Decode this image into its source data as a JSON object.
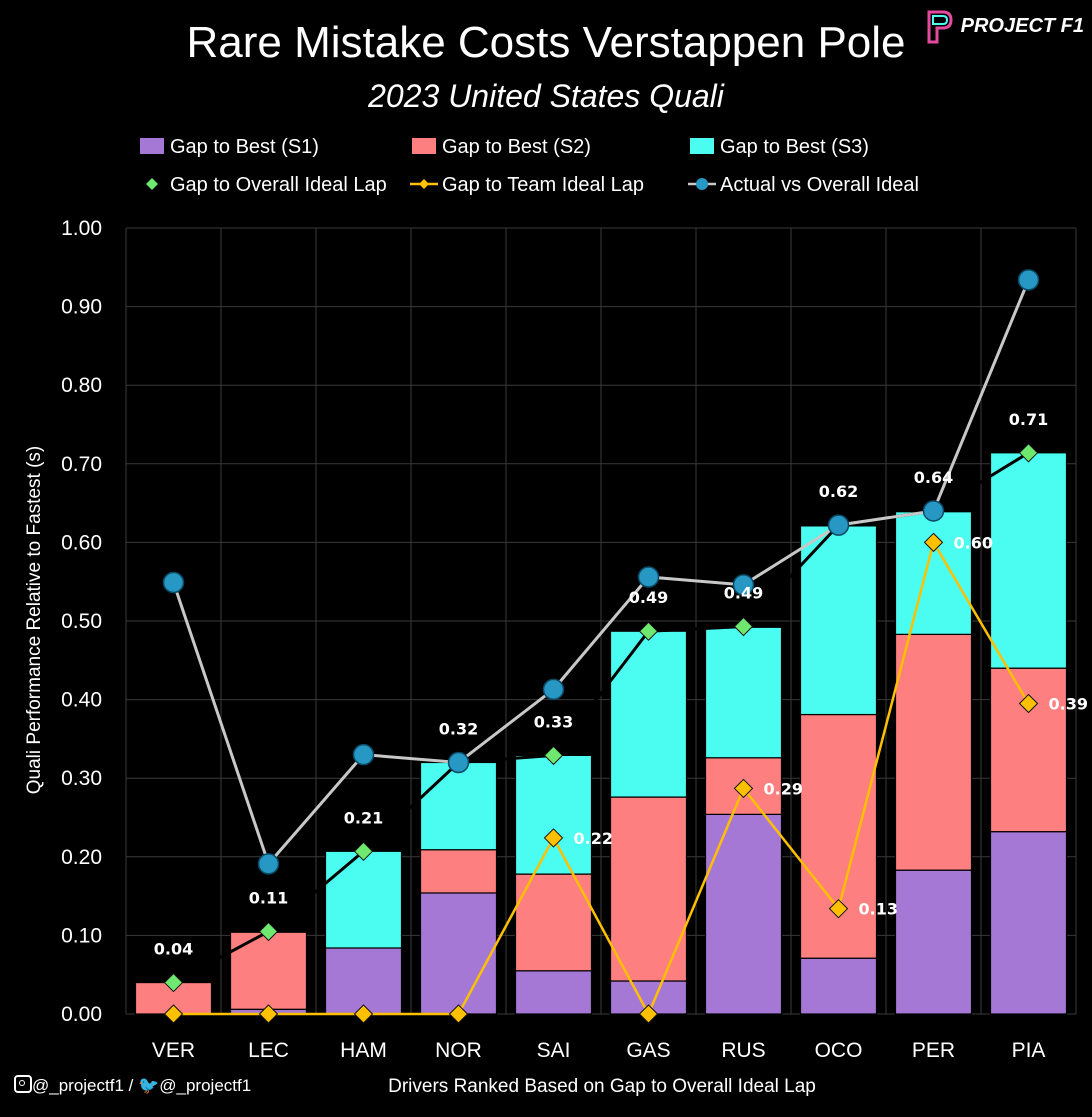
{
  "header": {
    "title": "Rare Mistake Costs Verstappen Pole",
    "subtitle": "2023 United States Quali",
    "brand": "PROJECT F1"
  },
  "footer": {
    "social_text": "@_projectf1 / ",
    "social_handle": "@_projectf1"
  },
  "colors": {
    "s1": "#a678d6",
    "s2": "#fd7f7f",
    "s3": "#4bfdf0",
    "overall_marker": "#6ee86e",
    "team_line": "#ffc000",
    "actual_marker": "#2797c4",
    "actual_line": "#c8c8c8",
    "overall_line": "#000000",
    "grid": "#3a3a3a"
  },
  "chart_data": {
    "type": "bar",
    "stacked": true,
    "title": "Rare Mistake Costs Verstappen Pole",
    "subtitle": "2023 United States Quali",
    "xlabel": "Drivers Ranked Based on Gap to Overall Ideal Lap",
    "ylabel": "Quali Performance Relative to Fastest (s)",
    "ylim": [
      0,
      1.0
    ],
    "yticks": [
      "0.00",
      "0.10",
      "0.20",
      "0.30",
      "0.40",
      "0.50",
      "0.60",
      "0.70",
      "0.80",
      "0.90",
      "1.00"
    ],
    "categories": [
      "VER",
      "LEC",
      "HAM",
      "NOR",
      "SAI",
      "GAS",
      "RUS",
      "OCO",
      "PER",
      "PIA"
    ],
    "series": [
      {
        "name": "Gap to Best (S1)",
        "kind": "bar",
        "values": [
          0.0,
          0.006,
          0.084,
          0.154,
          0.055,
          0.042,
          0.254,
          0.071,
          0.183,
          0.232
        ]
      },
      {
        "name": "Gap to Best (S2)",
        "kind": "bar",
        "values": [
          0.04,
          0.098,
          0.0,
          0.055,
          0.123,
          0.234,
          0.072,
          0.31,
          0.3,
          0.208
        ]
      },
      {
        "name": "Gap to Best (S3)",
        "kind": "bar",
        "values": [
          0.0,
          0.0,
          0.123,
          0.111,
          0.151,
          0.211,
          0.166,
          0.24,
          0.156,
          0.274
        ]
      },
      {
        "name": "Gap to Overall Ideal Lap",
        "kind": "marker-line",
        "values": [
          0.04,
          0.105,
          0.207,
          0.32,
          0.329,
          0.487,
          0.493,
          0.622,
          0.64,
          0.714
        ],
        "labels": [
          "0.04",
          "0.11",
          "0.21",
          "0.32",
          "0.33",
          "0.49",
          "0.49",
          "0.62",
          "0.64",
          "0.71"
        ]
      },
      {
        "name": "Gap to Team Ideal Lap",
        "kind": "marker-line",
        "values": [
          0.0,
          0.0,
          0.0,
          0.0,
          0.224,
          0.0,
          0.287,
          0.134,
          0.6,
          0.395
        ],
        "labels": [
          "",
          "",
          "",
          "",
          "0.22",
          "",
          "0.29",
          "0.13",
          "0.60",
          "0.39"
        ]
      },
      {
        "name": "Actual vs Overall Ideal",
        "kind": "line",
        "values": [
          0.549,
          0.191,
          0.33,
          0.32,
          0.413,
          0.556,
          0.546,
          0.622,
          0.64,
          0.934
        ]
      }
    ],
    "legend": [
      "Gap to Best (S1)",
      "Gap to Best (S2)",
      "Gap to Best (S3)",
      "Gap to Overall Ideal Lap",
      "Gap to Team Ideal Lap",
      "Actual vs Overall Ideal"
    ],
    "legend_position": "top",
    "grid": true
  }
}
